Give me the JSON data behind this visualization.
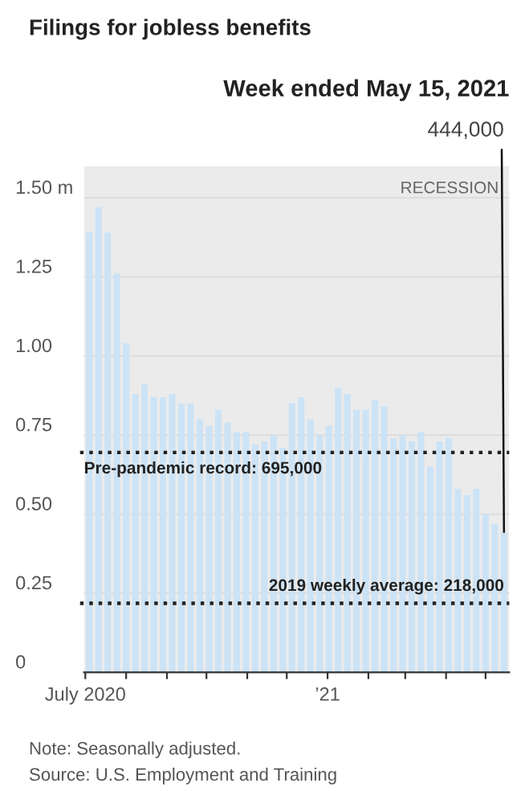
{
  "chart_data": {
    "type": "bar",
    "title": "Filings for jobless benefits",
    "x": [
      "2020-07-04",
      "2020-07-11",
      "2020-07-18",
      "2020-07-25",
      "2020-08-01",
      "2020-08-08",
      "2020-08-15",
      "2020-08-22",
      "2020-08-29",
      "2020-09-05",
      "2020-09-12",
      "2020-09-19",
      "2020-09-26",
      "2020-10-03",
      "2020-10-10",
      "2020-10-17",
      "2020-10-24",
      "2020-10-31",
      "2020-11-07",
      "2020-11-14",
      "2020-11-21",
      "2020-11-28",
      "2020-12-05",
      "2020-12-12",
      "2020-12-19",
      "2020-12-26",
      "2021-01-02",
      "2021-01-09",
      "2021-01-16",
      "2021-01-23",
      "2021-01-30",
      "2021-02-06",
      "2021-02-13",
      "2021-02-20",
      "2021-02-27",
      "2021-03-06",
      "2021-03-13",
      "2021-03-20",
      "2021-03-27",
      "2021-04-03",
      "2021-04-10",
      "2021-04-17",
      "2021-04-24",
      "2021-05-01",
      "2021-05-08",
      "2021-05-15"
    ],
    "values": [
      1.39,
      1.47,
      1.39,
      1.26,
      1.04,
      0.88,
      0.91,
      0.87,
      0.87,
      0.88,
      0.85,
      0.85,
      0.8,
      0.78,
      0.83,
      0.79,
      0.76,
      0.76,
      0.72,
      0.73,
      0.75,
      0.71,
      0.85,
      0.87,
      0.8,
      0.75,
      0.78,
      0.9,
      0.88,
      0.83,
      0.83,
      0.86,
      0.84,
      0.74,
      0.75,
      0.73,
      0.76,
      0.65,
      0.73,
      0.74,
      0.58,
      0.56,
      0.58,
      0.5,
      0.47,
      0.444
    ],
    "color": "#cce3f6",
    "xlim": [
      "2020-06-30",
      "2021-05-19"
    ],
    "xticks": [
      {
        "value": "2020-07-01",
        "label": "July 2020"
      },
      {
        "value": "2020-08-01",
        "label": null
      },
      {
        "value": "2020-09-01",
        "label": null
      },
      {
        "value": "2020-10-01",
        "label": null
      },
      {
        "value": "2020-11-01",
        "label": null
      },
      {
        "value": "2020-12-01",
        "label": null
      },
      {
        "value": "2021-01-01",
        "label": "’21"
      },
      {
        "value": "2021-02-01",
        "label": null
      },
      {
        "value": "2021-03-01",
        "label": null
      },
      {
        "value": "2021-04-01",
        "label": null
      },
      {
        "value": "2021-05-01",
        "label": null
      }
    ],
    "ylim": [
      0,
      1.6
    ],
    "yticks": [
      0,
      {
        "value": 0.25,
        "label": "0.25"
      },
      {
        "value": 0.5,
        "label": "0.50"
      },
      {
        "value": 0.75,
        "label": "0.75"
      },
      {
        "value": 1.0,
        "label": "1.00"
      },
      {
        "value": 1.25,
        "label": "1.25"
      },
      {
        "value": 1.5,
        "label": "1.50 m"
      }
    ],
    "grid": "y",
    "bands": [
      {
        "axis": "x",
        "from": "2020-06-30",
        "to": "2021-05-19",
        "label": "RECESSION",
        "color": "#ebebeb"
      }
    ],
    "ref_lines": [
      {
        "axis": "y",
        "value": 0.695,
        "label": "Pre-pandemic record: 695,000",
        "line_style": "dotted",
        "color": "#222222"
      },
      {
        "axis": "y",
        "value": 0.218,
        "label": "2019 weekly average: 218,000",
        "line_style": "dotted",
        "color": "#222222"
      }
    ],
    "annotations": [
      "Week ended May 15, 2021",
      "444,000",
      "Note: Seasonally adjusted.",
      "Source: U.S. Employment and Training"
    ]
  }
}
